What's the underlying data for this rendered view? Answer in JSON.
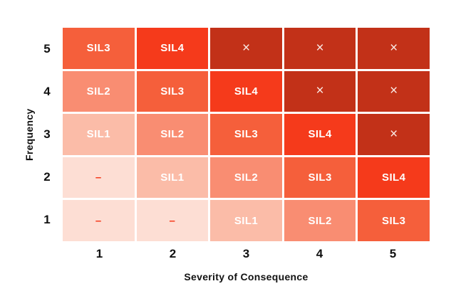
{
  "chart_data": {
    "type": "heatmap",
    "title": "",
    "xlabel": "Severity of Consequence",
    "ylabel": "Frequency",
    "x_ticks": [
      "1",
      "2",
      "3",
      "4",
      "5"
    ],
    "y_ticks_top_to_bottom": [
      "5",
      "4",
      "3",
      "2",
      "1"
    ],
    "legend_position": "none",
    "grid": "white gaps between cells",
    "rows": [
      {
        "frequency": "5",
        "cells": [
          {
            "label": "SIL3",
            "level": "sil3"
          },
          {
            "label": "SIL4",
            "level": "sil4"
          },
          {
            "label": "×",
            "level": "na"
          },
          {
            "label": "×",
            "level": "na"
          },
          {
            "label": "×",
            "level": "na"
          }
        ]
      },
      {
        "frequency": "4",
        "cells": [
          {
            "label": "SIL2",
            "level": "sil2"
          },
          {
            "label": "SIL3",
            "level": "sil3"
          },
          {
            "label": "SIL4",
            "level": "sil4"
          },
          {
            "label": "×",
            "level": "na"
          },
          {
            "label": "×",
            "level": "na"
          }
        ]
      },
      {
        "frequency": "3",
        "cells": [
          {
            "label": "SIL1",
            "level": "sil1"
          },
          {
            "label": "SIL2",
            "level": "sil2"
          },
          {
            "label": "SIL3",
            "level": "sil3"
          },
          {
            "label": "SIL4",
            "level": "sil4"
          },
          {
            "label": "×",
            "level": "na"
          }
        ]
      },
      {
        "frequency": "2",
        "cells": [
          {
            "label": "–",
            "level": "none"
          },
          {
            "label": "SIL1",
            "level": "sil1"
          },
          {
            "label": "SIL2",
            "level": "sil2"
          },
          {
            "label": "SIL3",
            "level": "sil3"
          },
          {
            "label": "SIL4",
            "level": "sil4"
          }
        ]
      },
      {
        "frequency": "1",
        "cells": [
          {
            "label": "–",
            "level": "none"
          },
          {
            "label": "–",
            "level": "none"
          },
          {
            "label": "SIL1",
            "level": "sil1"
          },
          {
            "label": "SIL2",
            "level": "sil2"
          },
          {
            "label": "SIL3",
            "level": "sil3"
          }
        ]
      }
    ]
  },
  "colors": {
    "none_bg": "#FDDED4",
    "sil1_bg": "#FBBCA8",
    "sil2_bg": "#F98D72",
    "sil3_bg": "#F55F3B",
    "sil4_bg": "#F53A1B",
    "na_bg": "#C23118",
    "sil_text": "#FFFFFF",
    "na_text": "#FAEAE5",
    "dash_text": "#F5391B",
    "axis_text": "#111111",
    "background": "#FFFFFF"
  }
}
